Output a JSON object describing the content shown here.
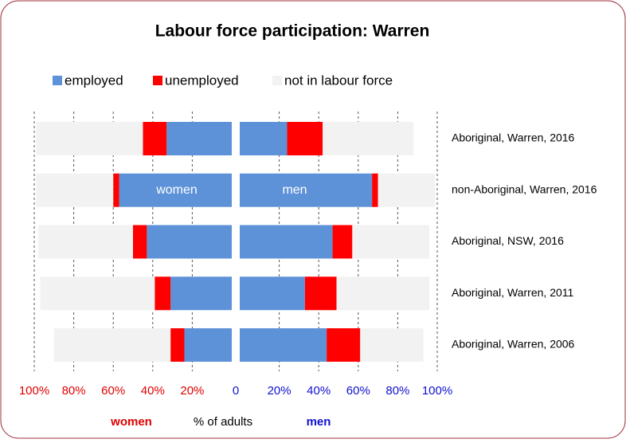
{
  "chart_data": {
    "type": "butterfly",
    "title": "Labour force participation: Warren",
    "categories": [
      "Aboriginal, Warren, 2016",
      "non-Aboriginal, Warren, 2016",
      "Aboriginal, NSW, 2016",
      "Aboriginal, Warren, 2011",
      "Aboriginal, Warren, 2006"
    ],
    "series": [
      {
        "name": "employed",
        "color": "#5e92d8",
        "women": [
          33,
          57,
          43,
          31,
          24
        ],
        "men": [
          24,
          67,
          47,
          33,
          44
        ]
      },
      {
        "name": "unemployed",
        "color": "#ff0000",
        "women": [
          12,
          3,
          7,
          8,
          7
        ],
        "men": [
          18,
          3,
          10,
          16,
          17
        ]
      },
      {
        "name": "not in labour force",
        "color": "#f2f2f2",
        "women": [
          54,
          39,
          48,
          58,
          59
        ],
        "men": [
          46,
          29,
          39,
          47,
          32
        ]
      }
    ],
    "xlim": [
      0,
      100
    ],
    "women_xticks": [
      {
        "value": 100,
        "label": "100%"
      },
      {
        "value": 80,
        "label": "80%"
      },
      {
        "value": 60,
        "label": "60%"
      },
      {
        "value": 40,
        "label": "40%"
      },
      {
        "value": 20,
        "label": "20%"
      }
    ],
    "men_xticks": [
      0,
      {
        "value": 20,
        "label": "20%"
      },
      {
        "value": 40,
        "label": "40%"
      },
      {
        "value": 60,
        "label": "60%"
      },
      {
        "value": 80,
        "label": "80%"
      },
      {
        "value": 100,
        "label": "100%"
      }
    ],
    "women_label": "women",
    "men_label": "men",
    "x_label": "% of adults",
    "women_color": "#e00000",
    "men_color": "#1010d0",
    "grid": true
  }
}
